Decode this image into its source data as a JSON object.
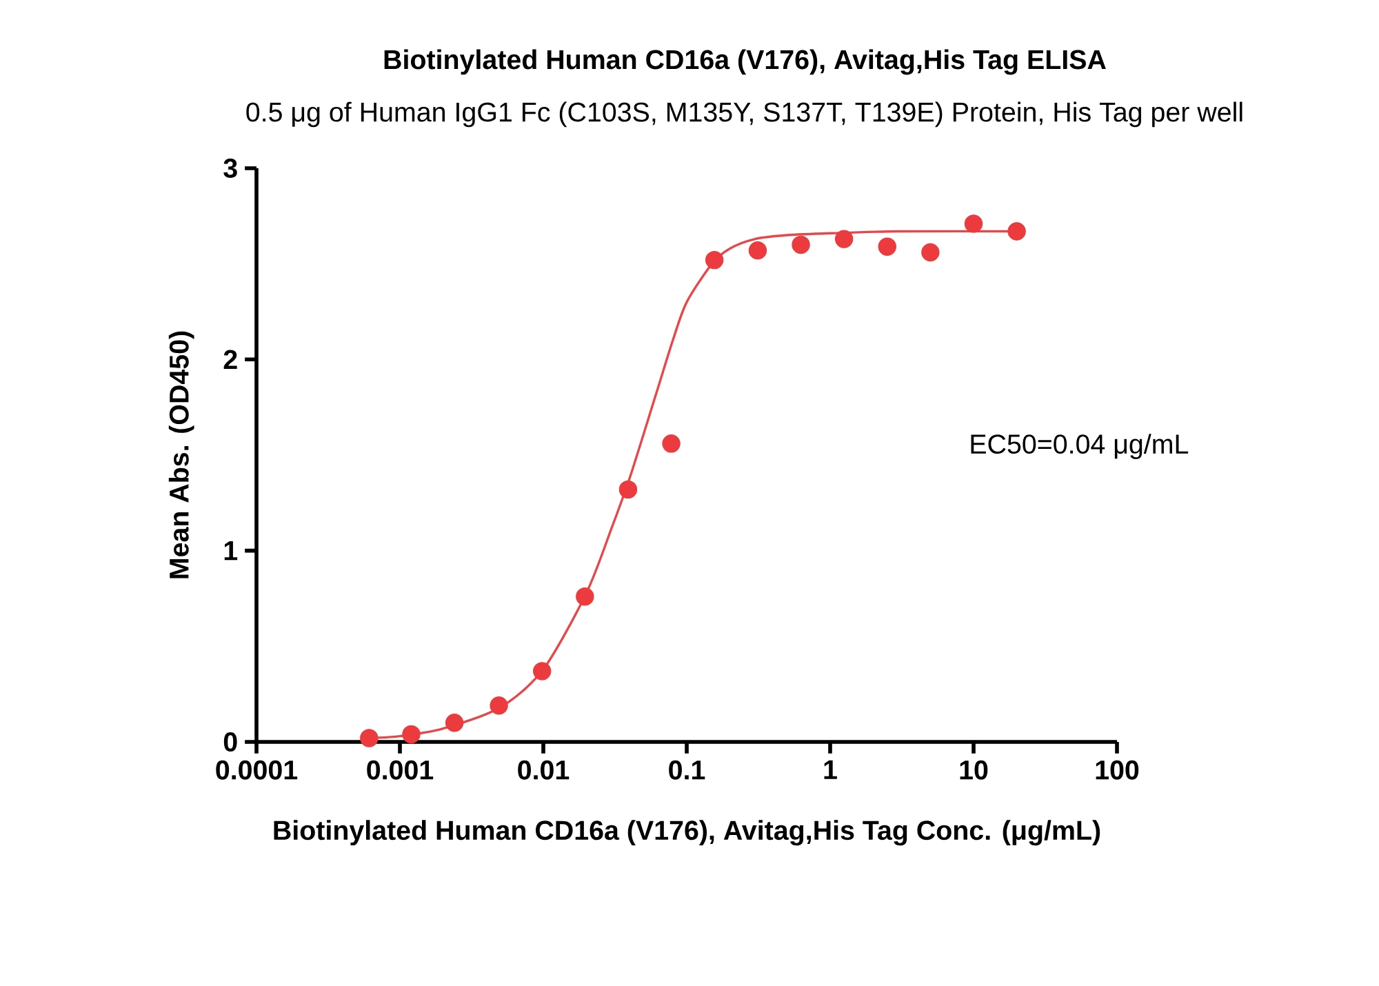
{
  "chart_data": {
    "type": "scatter",
    "title": "Biotinylated Human CD16a (V176), Avitag,His Tag ELISA",
    "subtitle": "0.5 μg of Human IgG1 Fc (C103S, M135Y, S137T, T139E) Protein, His Tag per well",
    "xlabel": "Biotinylated Human CD16a (V176), Avitag,His Tag Conc. (μg/mL)",
    "ylabel": "Mean Abs. (OD450)",
    "annotations": [
      "EC50=0.04 μg/mL"
    ],
    "log": "x",
    "xlim": [
      0.0001,
      100
    ],
    "ylim": [
      0,
      3
    ],
    "xticks": [
      0.0001,
      0.001,
      0.01,
      0.1,
      1,
      10,
      100
    ],
    "yticks": [
      0,
      1,
      2,
      3
    ],
    "series": [
      {
        "color": "#ec3b3f",
        "marker": "circle",
        "x": [
          0.00061,
          0.0012,
          0.0024,
          0.0049,
          0.0098,
          0.0195,
          0.039,
          0.078,
          0.156,
          0.3125,
          0.625,
          1.25,
          2.5,
          5,
          10,
          20
        ],
        "values": [
          0.02,
          0.04,
          0.1,
          0.19,
          0.37,
          0.76,
          1.32,
          1.56,
          2.52,
          2.57,
          2.6,
          2.63,
          2.59,
          2.56,
          2.71,
          2.67
        ]
      },
      {
        "type": "line",
        "color": "#e8474a",
        "marker": "none",
        "line_style": "solid",
        "x": [
          0.0006,
          0.001,
          0.002,
          0.005,
          0.01,
          0.02,
          0.03,
          0.04,
          0.06,
          0.08,
          0.1,
          0.15,
          0.2,
          0.3,
          0.5,
          1,
          3,
          20
        ],
        "values": [
          0.02,
          0.03,
          0.07,
          0.18,
          0.38,
          0.78,
          1.12,
          1.38,
          1.8,
          2.1,
          2.3,
          2.5,
          2.58,
          2.63,
          2.65,
          2.66,
          2.67,
          2.67
        ]
      }
    ]
  }
}
